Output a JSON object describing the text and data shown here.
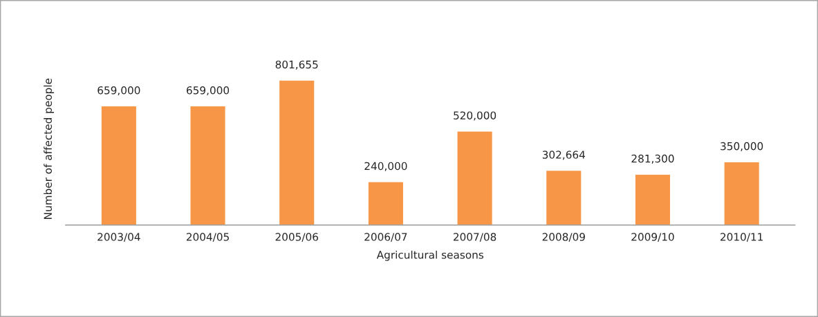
{
  "chart_data": {
    "type": "bar",
    "xlabel": "Agricultural seasons",
    "ylabel": "Number of affected people",
    "categories": [
      "2003/04",
      "2004/05",
      "2005/06",
      "2006/07",
      "2007/08",
      "2008/09",
      "2009/10",
      "2010/11"
    ],
    "values": [
      659000,
      659000,
      801655,
      240000,
      520000,
      302664,
      281300,
      350000
    ],
    "color": "#f79646",
    "value_labels": [
      "659,000",
      "659,000",
      "801,655",
      "240,000",
      "520,000",
      "302,664",
      "281,300",
      "350,000"
    ],
    "tick_labels": "x",
    "grid": false,
    "legend": false
  }
}
